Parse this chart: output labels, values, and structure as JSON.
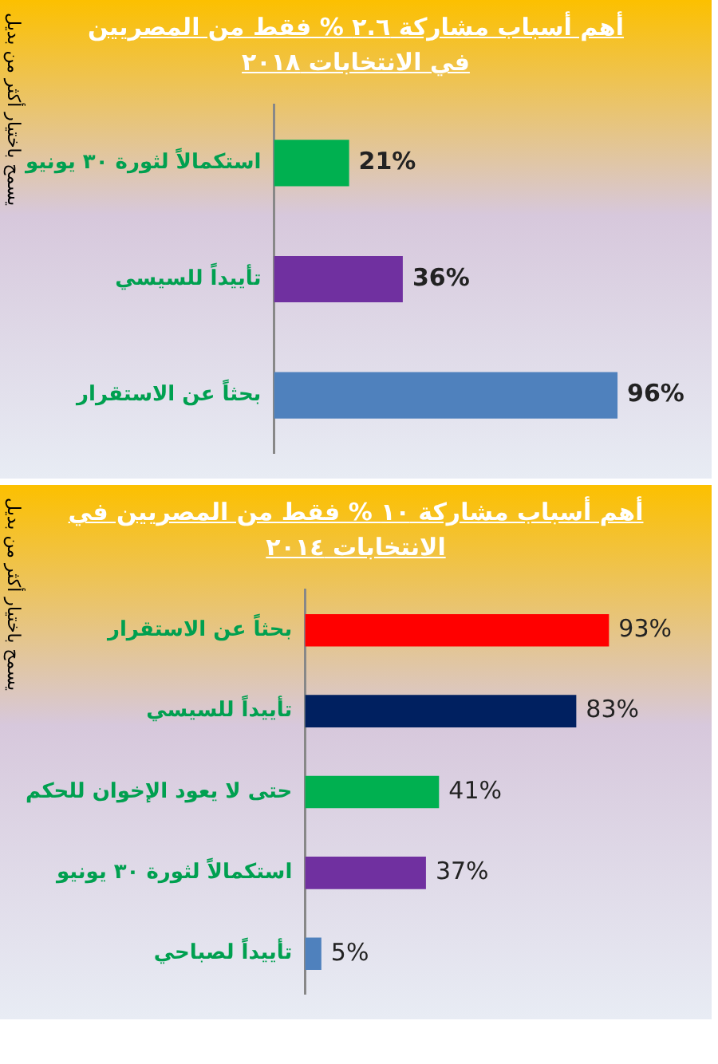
{
  "chart_data": [
    {
      "type": "bar",
      "orientation": "horizontal",
      "title": "أهم أسباب مشاركة ٢.٦ % فقط من المصريين في الانتخابات ٢٠١٨",
      "annotations": [
        "يسمح باختيار أكثر من بديل"
      ],
      "categories": [
        "استكمالاً لثورة ٣٠ يونيو",
        "تأييداً للسيسي",
        "بحثاً عن الاستقرار"
      ],
      "values": [
        21,
        36,
        96
      ],
      "colors": [
        "#00b050",
        "#7030a0",
        "#4f81bd"
      ],
      "value_labels": [
        "21%",
        "36%",
        "96%"
      ],
      "tick_labels": "y",
      "legend": false,
      "grid": false
    },
    {
      "type": "bar",
      "orientation": "horizontal",
      "title": "أهم أسباب مشاركة ١٠ % فقط من المصريين في الانتخابات ٢٠١٤",
      "annotations": [
        "يسمح باختيار أكثر من بديل"
      ],
      "categories": [
        "بحثاً عن الاستقرار",
        "تأييداً للسيسي",
        "حتى لا يعود الإخوان للحكم",
        "استكمالاً لثورة ٣٠ يونيو",
        "تأييداً لصباحي"
      ],
      "values": [
        93,
        83,
        41,
        37,
        5
      ],
      "colors": [
        "#ff0000",
        "#002060",
        "#00b050",
        "#7030a0",
        "#4f81bd"
      ],
      "value_labels": [
        "93%",
        "83%",
        "41%",
        "37%",
        "5%"
      ],
      "tick_labels": "y",
      "legend": false,
      "grid": false
    }
  ]
}
